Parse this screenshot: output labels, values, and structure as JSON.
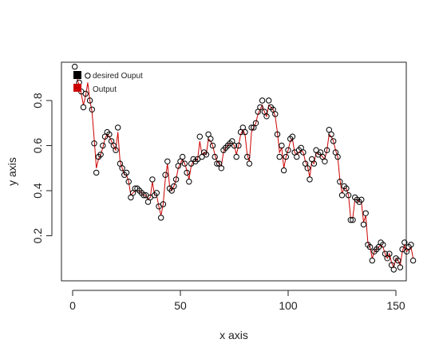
{
  "colors": {
    "output_line": "#cc0000",
    "points_stroke": "#000000",
    "legend_desired": "#000000",
    "legend_output": "#cc0000"
  },
  "chart_data": {
    "type": "scatter",
    "xlabel": "x axis",
    "ylabel": "y axis",
    "xlim": [
      0,
      160
    ],
    "ylim": [
      0.0,
      0.97
    ],
    "x_ticks": [
      0,
      50,
      100,
      150
    ],
    "y_ticks": [
      0.2,
      0.4,
      0.6,
      0.8
    ],
    "legend": {
      "placement": "top-left",
      "entries": [
        {
          "label": "desired Ouput",
          "marker": "square",
          "color": "#000000"
        },
        {
          "label": "Output",
          "marker": "square",
          "color": "#cc0000"
        }
      ]
    },
    "series": [
      {
        "name": "desired Ouput",
        "style": "points",
        "x": [
          1,
          2,
          3,
          4,
          5,
          6,
          7,
          8,
          9,
          10,
          11,
          12,
          13,
          14,
          15,
          16,
          17,
          18,
          19,
          20,
          21,
          22,
          23,
          24,
          25,
          26,
          27,
          28,
          29,
          30,
          31,
          32,
          33,
          34,
          35,
          36,
          37,
          38,
          39,
          40,
          41,
          42,
          43,
          44,
          45,
          46,
          47,
          48,
          49,
          50,
          51,
          52,
          53,
          54,
          55,
          56,
          57,
          58,
          59,
          60,
          61,
          62,
          63,
          64,
          65,
          66,
          67,
          68,
          69,
          70,
          71,
          72,
          73,
          74,
          75,
          76,
          77,
          78,
          79,
          80,
          81,
          82,
          83,
          84,
          85,
          86,
          87,
          88,
          89,
          90,
          91,
          92,
          93,
          94,
          95,
          96,
          97,
          98,
          99,
          100,
          101,
          102,
          103,
          104,
          105,
          106,
          107,
          108,
          109,
          110,
          111,
          112,
          113,
          114,
          115,
          116,
          117,
          118,
          119,
          120,
          121,
          122,
          123,
          124,
          125,
          126,
          127,
          128,
          129,
          130,
          131,
          132,
          133,
          134,
          135,
          136,
          137,
          138,
          139,
          140,
          141,
          142,
          143,
          144,
          145,
          146,
          147,
          148,
          149,
          150,
          151,
          152,
          153,
          154,
          155,
          156,
          157,
          158
        ],
        "y": [
          0.95,
          0.91,
          0.88,
          0.84,
          0.77,
          0.83,
          0.91,
          0.8,
          0.76,
          0.61,
          0.48,
          0.55,
          0.56,
          0.6,
          0.64,
          0.66,
          0.65,
          0.62,
          0.6,
          0.58,
          0.68,
          0.52,
          0.5,
          0.47,
          0.48,
          0.44,
          0.37,
          0.39,
          0.41,
          0.41,
          0.4,
          0.39,
          0.38,
          0.38,
          0.35,
          0.37,
          0.45,
          0.38,
          0.39,
          0.33,
          0.28,
          0.34,
          0.47,
          0.53,
          0.41,
          0.4,
          0.42,
          0.45,
          0.51,
          0.53,
          0.55,
          0.52,
          0.48,
          0.44,
          0.52,
          0.54,
          0.53,
          0.54,
          0.64,
          0.55,
          0.57,
          0.56,
          0.65,
          0.63,
          0.6,
          0.55,
          0.52,
          0.52,
          0.5,
          0.58,
          0.59,
          0.6,
          0.61,
          0.62,
          0.6,
          0.55,
          0.6,
          0.66,
          0.68,
          0.66,
          0.55,
          0.52,
          0.68,
          0.68,
          0.7,
          0.75,
          0.77,
          0.8,
          0.75,
          0.73,
          0.8,
          0.77,
          0.76,
          0.74,
          0.65,
          0.55,
          0.6,
          0.49,
          0.55,
          0.58,
          0.63,
          0.64,
          0.57,
          0.55,
          0.58,
          0.59,
          0.57,
          0.52,
          0.5,
          0.45,
          0.54,
          0.52,
          0.58,
          0.56,
          0.57,
          0.55,
          0.53,
          0.58,
          0.67,
          0.65,
          0.62,
          0.57,
          0.55,
          0.44,
          0.38,
          0.42,
          0.41,
          0.38,
          0.27,
          0.27,
          0.37,
          0.36,
          0.35,
          0.36,
          0.25,
          0.3,
          0.16,
          0.15,
          0.09,
          0.13,
          0.14,
          0.15,
          0.17,
          0.16,
          0.12,
          0.1,
          0.12,
          0.07,
          0.05,
          0.1,
          0.09,
          0.06,
          0.14,
          0.17,
          0.13,
          0.15,
          0.16,
          0.09
        ]
      },
      {
        "name": "Output",
        "style": "line",
        "x": [
          1,
          2,
          3,
          4,
          5,
          6,
          7,
          8,
          9,
          10,
          11,
          12,
          13,
          14,
          15,
          16,
          17,
          18,
          19,
          20,
          21,
          22,
          23,
          24,
          25,
          26,
          27,
          28,
          29,
          30,
          31,
          32,
          33,
          34,
          35,
          36,
          37,
          38,
          39,
          40,
          41,
          42,
          43,
          44,
          45,
          46,
          47,
          48,
          49,
          50,
          51,
          52,
          53,
          54,
          55,
          56,
          57,
          58,
          59,
          60,
          61,
          62,
          63,
          64,
          65,
          66,
          67,
          68,
          69,
          70,
          71,
          72,
          73,
          74,
          75,
          76,
          77,
          78,
          79,
          80,
          81,
          82,
          83,
          84,
          85,
          86,
          87,
          88,
          89,
          90,
          91,
          92,
          93,
          94,
          95,
          96,
          97,
          98,
          99,
          100,
          101,
          102,
          103,
          104,
          105,
          106,
          107,
          108,
          109,
          110,
          111,
          112,
          113,
          114,
          115,
          116,
          117,
          118,
          119,
          120,
          121,
          122,
          123,
          124,
          125,
          126,
          127,
          128,
          129,
          130,
          131,
          132,
          133,
          134,
          135,
          136,
          137,
          138,
          139,
          140,
          141,
          142,
          143,
          144,
          145,
          146,
          147,
          148,
          149,
          150,
          151,
          152,
          153,
          154,
          155,
          156,
          157,
          158
        ],
        "y": [
          0.93,
          0.9,
          0.87,
          0.83,
          0.78,
          0.82,
          0.88,
          0.8,
          0.75,
          0.63,
          0.5,
          0.54,
          0.56,
          0.59,
          0.63,
          0.65,
          0.64,
          0.62,
          0.6,
          0.58,
          0.66,
          0.53,
          0.5,
          0.47,
          0.47,
          0.44,
          0.38,
          0.39,
          0.4,
          0.4,
          0.4,
          0.39,
          0.38,
          0.38,
          0.36,
          0.37,
          0.44,
          0.38,
          0.38,
          0.33,
          0.29,
          0.34,
          0.45,
          0.52,
          0.42,
          0.4,
          0.42,
          0.45,
          0.5,
          0.52,
          0.54,
          0.52,
          0.49,
          0.45,
          0.51,
          0.53,
          0.53,
          0.54,
          0.62,
          0.56,
          0.57,
          0.56,
          0.63,
          0.62,
          0.6,
          0.56,
          0.53,
          0.52,
          0.51,
          0.57,
          0.59,
          0.6,
          0.61,
          0.61,
          0.6,
          0.56,
          0.6,
          0.65,
          0.67,
          0.65,
          0.56,
          0.53,
          0.66,
          0.68,
          0.7,
          0.74,
          0.76,
          0.78,
          0.75,
          0.73,
          0.78,
          0.77,
          0.76,
          0.73,
          0.66,
          0.57,
          0.59,
          0.5,
          0.55,
          0.58,
          0.62,
          0.63,
          0.57,
          0.56,
          0.57,
          0.58,
          0.57,
          0.53,
          0.51,
          0.46,
          0.53,
          0.52,
          0.57,
          0.56,
          0.56,
          0.55,
          0.54,
          0.58,
          0.65,
          0.64,
          0.62,
          0.58,
          0.55,
          0.45,
          0.39,
          0.41,
          0.41,
          0.38,
          0.28,
          0.28,
          0.36,
          0.36,
          0.35,
          0.35,
          0.26,
          0.29,
          0.17,
          0.15,
          0.1,
          0.13,
          0.14,
          0.15,
          0.16,
          0.15,
          0.12,
          0.1,
          0.12,
          0.08,
          0.06,
          0.1,
          0.09,
          0.07,
          0.13,
          0.16,
          0.13,
          0.14,
          0.15,
          0.1
        ]
      }
    ]
  }
}
